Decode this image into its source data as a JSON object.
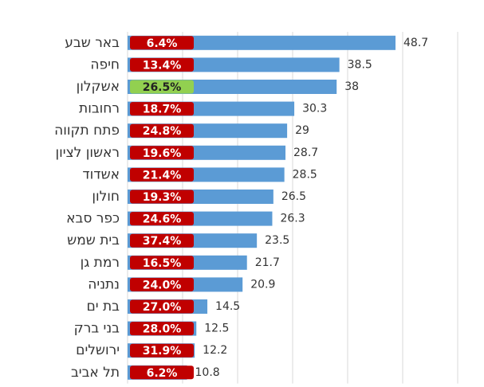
{
  "chart_data": {
    "type": "bar",
    "orientation": "horizontal",
    "categories": [
      "באר שבע",
      "חיפה",
      "אשקלון",
      "רחובות",
      "פתח תקווה",
      "ראשון לציון",
      "אשדוד",
      "חולון",
      "כפר סבא",
      "בית שמש",
      "רמת גן",
      "נתניה",
      "בת ים",
      "בני ברק",
      "ירושלים",
      "תל אביב"
    ],
    "values": [
      48.7,
      38.5,
      38,
      30.3,
      29,
      28.7,
      28.5,
      26.5,
      26.3,
      23.5,
      21.7,
      20.9,
      14.5,
      12.5,
      12.2,
      10.8
    ],
    "color": "#5b9bd5",
    "badges": {
      "values": [
        6.4,
        13.4,
        26.5,
        18.7,
        24.8,
        19.6,
        21.4,
        19.3,
        24.6,
        37.4,
        16.5,
        24.0,
        27.0,
        28.0,
        31.9,
        6.2
      ],
      "value_labels": [
        "6.4%",
        "13.4%",
        "26.5%",
        "18.7%",
        "24.8%",
        "19.6%",
        "21.4%",
        "19.3%",
        "24.6%",
        "37.4%",
        "16.5%",
        "24.0%",
        "27.0%",
        "28.0%",
        "31.9%",
        "6.2%"
      ],
      "colors": [
        "#c00000",
        "#c00000",
        "#92d050",
        "#c00000",
        "#c00000",
        "#c00000",
        "#c00000",
        "#c00000",
        "#c00000",
        "#c00000",
        "#c00000",
        "#c00000",
        "#c00000",
        "#c00000",
        "#c00000",
        "#c00000"
      ]
    },
    "xlim": [
      0,
      60
    ],
    "xticks": [
      0,
      10,
      20,
      30,
      40,
      50,
      60
    ],
    "grid": true
  }
}
